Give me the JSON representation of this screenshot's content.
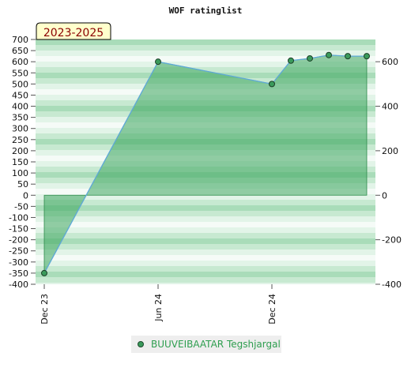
{
  "chart_data": {
    "type": "area",
    "title": "WOF ratinglist",
    "period_label": "2023-2025",
    "x_ticks": [
      "Dec 23",
      "Jun 24",
      "Dec 24"
    ],
    "left_axis": {
      "ylim": [
        -400,
        700
      ],
      "ticks": [
        700,
        650,
        600,
        550,
        500,
        450,
        400,
        350,
        300,
        250,
        200,
        150,
        100,
        50,
        0,
        -50,
        -100,
        -150,
        -200,
        -250,
        -300,
        -350,
        -400
      ]
    },
    "right_axis": {
      "ylim": [
        -400,
        700
      ],
      "ticks": [
        600,
        400,
        200,
        0,
        -200,
        -400
      ]
    },
    "grid": "horizontal-bands",
    "legend_position": "bottom-center",
    "series": [
      {
        "name": "BUUVEIBAATAR Tegshjargal",
        "color": "#3a9a5b",
        "x": [
          "2023-12",
          "2024-06",
          "2024-12",
          "2025-01",
          "2025-02",
          "2025-03",
          "2025-04",
          "2025-05"
        ],
        "values": [
          -350,
          600,
          500,
          605,
          615,
          630,
          625,
          625
        ]
      }
    ]
  }
}
